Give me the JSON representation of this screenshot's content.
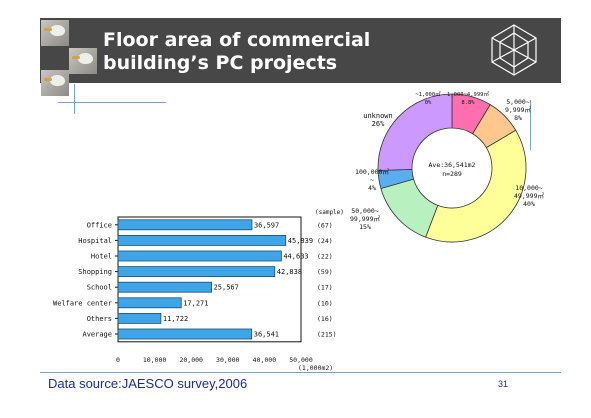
{
  "slide": {
    "title": "Floor area of commercial\nbuilding’s PC projects",
    "footer_source": "Data source:JAESCO survey,2006",
    "page_number": "31"
  },
  "colors": {
    "header": "#474747",
    "bar_fill": "#3ea6e6",
    "pie_slices": [
      "#ff6fb0",
      "#ffc78e",
      "#ffff99",
      "#b8f0c0",
      "#5aaef0",
      "#cc99ff"
    ]
  },
  "chart_data": [
    {
      "type": "bar",
      "orientation": "horizontal",
      "categories": [
        "Office",
        "Hospital",
        "Hotel",
        "Shopping",
        "School",
        "Welfare center",
        "Others",
        "Average"
      ],
      "values": [
        36597,
        45839,
        44633,
        42838,
        25567,
        17271,
        11722,
        36541
      ],
      "value_labels": [
        "36,597",
        "45,839",
        "44,633",
        "42,838",
        "25,567",
        "17,271",
        "11,722",
        "36,541"
      ],
      "samples": [
        "(67)",
        "(24)",
        "(22)",
        "(59)",
        "(17)",
        "(10)",
        "(16)",
        "(215)"
      ],
      "sample_header": "(sample)",
      "x_ticks": [
        "0",
        "10,000",
        "20,000",
        "30,000",
        "40,000",
        "50,000"
      ],
      "x_unit": "(1,000m2)",
      "xlim": [
        0,
        50000
      ],
      "grid": false
    },
    {
      "type": "pie",
      "style": "donut",
      "slices": [
        {
          "label": "~1,000㎡",
          "percent": 0,
          "percent_label": "0%"
        },
        {
          "label": "1,000~4,999㎡",
          "percent": 8.8,
          "percent_label": "8.8%"
        },
        {
          "label": "5,000~\n9,999㎡",
          "percent": 8,
          "percent_label": "8%"
        },
        {
          "label": "10,000~\n49,999㎡",
          "percent": 40,
          "percent_label": "40%"
        },
        {
          "label": "50,000~\n99,999㎡",
          "percent": 15,
          "percent_label": "15%"
        },
        {
          "label": "100,000㎡\n~",
          "percent": 4,
          "percent_label": "4%"
        },
        {
          "label": "unknown",
          "percent": 26,
          "percent_label": "26%"
        }
      ],
      "center_text": [
        "Ave:36,541m2",
        "n=289"
      ]
    }
  ]
}
